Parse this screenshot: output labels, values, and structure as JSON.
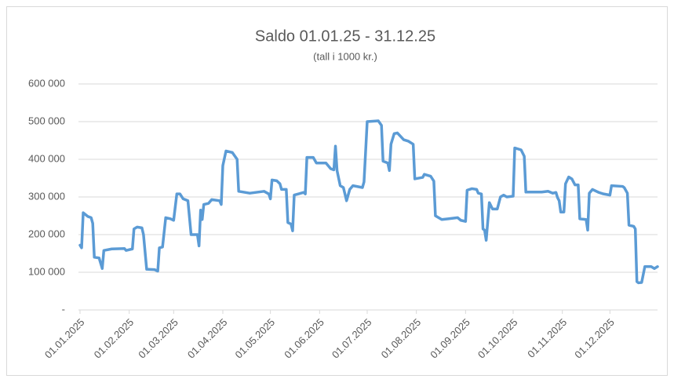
{
  "chart_data": {
    "type": "line",
    "title": "Saldo 01.01.25 - 31.12.25",
    "subtitle": "(tall i 1000 kr.)",
    "x": [
      "2025-01-01",
      "2025-01-02",
      "2025-01-03",
      "2025-01-06",
      "2025-01-08",
      "2025-01-09",
      "2025-01-10",
      "2025-01-13",
      "2025-01-15",
      "2025-01-16",
      "2025-01-21",
      "2025-01-29",
      "2025-01-30",
      "2025-02-03",
      "2025-02-04",
      "2025-02-06",
      "2025-02-09",
      "2025-02-10",
      "2025-02-12",
      "2025-02-17",
      "2025-02-19",
      "2025-02-20",
      "2025-02-22",
      "2025-02-24",
      "2025-02-27",
      "2025-03-01",
      "2025-03-03",
      "2025-03-05",
      "2025-03-07",
      "2025-03-10",
      "2025-03-12",
      "2025-03-16",
      "2025-03-17",
      "2025-03-18",
      "2025-03-19",
      "2025-03-20",
      "2025-03-23",
      "2025-03-25",
      "2025-03-30",
      "2025-03-31",
      "2025-04-01",
      "2025-04-03",
      "2025-04-07",
      "2025-04-10",
      "2025-04-11",
      "2025-04-18",
      "2025-04-27",
      "2025-04-30",
      "2025-05-01",
      "2025-05-02",
      "2025-05-05",
      "2025-05-07",
      "2025-05-08",
      "2025-05-11",
      "2025-05-12",
      "2025-05-14",
      "2025-05-15",
      "2025-05-16",
      "2025-05-22",
      "2025-05-23",
      "2025-05-24",
      "2025-05-28",
      "2025-05-30",
      "2025-06-05",
      "2025-06-08",
      "2025-06-10",
      "2025-06-11",
      "2025-06-12",
      "2025-06-14",
      "2025-06-16",
      "2025-06-18",
      "2025-06-20",
      "2025-06-22",
      "2025-06-28",
      "2025-06-29",
      "2025-07-01",
      "2025-07-08",
      "2025-07-10",
      "2025-07-11",
      "2025-07-14",
      "2025-07-15",
      "2025-07-16",
      "2025-07-18",
      "2025-07-20",
      "2025-07-24",
      "2025-07-27",
      "2025-07-30",
      "2025-07-31",
      "2025-08-05",
      "2025-08-06",
      "2025-08-10",
      "2025-08-12",
      "2025-08-13",
      "2025-08-17",
      "2025-08-21",
      "2025-08-27",
      "2025-08-29",
      "2025-09-01",
      "2025-09-02",
      "2025-09-05",
      "2025-09-08",
      "2025-09-09",
      "2025-09-11",
      "2025-09-12",
      "2025-09-13",
      "2025-09-14",
      "2025-09-16",
      "2025-09-18",
      "2025-09-21",
      "2025-09-23",
      "2025-09-25",
      "2025-09-27",
      "2025-10-01",
      "2025-10-02",
      "2025-10-06",
      "2025-10-08",
      "2025-10-09",
      "2025-10-19",
      "2025-10-23",
      "2025-10-26",
      "2025-10-28",
      "2025-10-29",
      "2025-10-30",
      "2025-10-31",
      "2025-11-02",
      "2025-11-03",
      "2025-11-05",
      "2025-11-07",
      "2025-11-09",
      "2025-11-11",
      "2025-11-12",
      "2025-11-16",
      "2025-11-17",
      "2025-11-18",
      "2025-11-20",
      "2025-11-24",
      "2025-11-27",
      "2025-12-01",
      "2025-12-02",
      "2025-12-09",
      "2025-12-10",
      "2025-12-12",
      "2025-12-13",
      "2025-12-16",
      "2025-12-17",
      "2025-12-18",
      "2025-12-19",
      "2025-12-21",
      "2025-12-23",
      "2025-12-27",
      "2025-12-29",
      "2025-12-31"
    ],
    "series": [
      {
        "name": "Saldo",
        "color": "#5b9bd5",
        "values": [
          172000,
          165000,
          258000,
          248000,
          245000,
          230000,
          140000,
          138000,
          110000,
          158000,
          162000,
          163000,
          158000,
          162000,
          215000,
          220000,
          218000,
          200000,
          108000,
          107000,
          103000,
          165000,
          167000,
          245000,
          242000,
          238000,
          308000,
          308000,
          295000,
          290000,
          200000,
          200000,
          170000,
          265000,
          240000,
          280000,
          283000,
          293000,
          290000,
          280000,
          383000,
          422000,
          418000,
          400000,
          315000,
          310000,
          315000,
          308000,
          295000,
          345000,
          343000,
          335000,
          320000,
          320000,
          232000,
          228000,
          210000,
          305000,
          312000,
          308000,
          405000,
          405000,
          390000,
          390000,
          375000,
          372000,
          435000,
          370000,
          330000,
          325000,
          290000,
          320000,
          330000,
          325000,
          340000,
          500000,
          502000,
          490000,
          395000,
          390000,
          370000,
          440000,
          468000,
          470000,
          452000,
          448000,
          440000,
          348000,
          352000,
          360000,
          355000,
          342000,
          250000,
          240000,
          242000,
          245000,
          238000,
          235000,
          318000,
          322000,
          320000,
          310000,
          308000,
          215000,
          212000,
          185000,
          285000,
          268000,
          268000,
          300000,
          305000,
          300000,
          302000,
          430000,
          425000,
          408000,
          313000,
          313000,
          315000,
          310000,
          312000,
          298000,
          290000,
          260000,
          260000,
          335000,
          353000,
          348000,
          332000,
          332000,
          242000,
          240000,
          212000,
          310000,
          320000,
          312000,
          308000,
          305000,
          330000,
          328000,
          325000,
          310000,
          225000,
          222000,
          215000,
          75000,
          72000,
          73000,
          115000,
          115000,
          110000,
          115000
        ]
      }
    ],
    "xlim": [
      "2025-01-01",
      "2025-12-31"
    ],
    "xticks": [
      {
        "value": "2025-01-01",
        "label": "01.01.2025"
      },
      {
        "value": "2025-02-01",
        "label": "01.02.2025"
      },
      {
        "value": "2025-03-01",
        "label": "01.03.2025"
      },
      {
        "value": "2025-04-01",
        "label": "01.04.2025"
      },
      {
        "value": "2025-05-01",
        "label": "01.05.2025"
      },
      {
        "value": "2025-06-01",
        "label": "01.06.2025"
      },
      {
        "value": "2025-07-01",
        "label": "01.07.2025"
      },
      {
        "value": "2025-08-01",
        "label": "01.08.2025"
      },
      {
        "value": "2025-09-01",
        "label": "01.09.2025"
      },
      {
        "value": "2025-10-01",
        "label": "01.10.2025"
      },
      {
        "value": "2025-11-01",
        "label": "01.11.2025"
      },
      {
        "value": "2025-12-01",
        "label": "01.12.2025"
      }
    ],
    "ylim": [
      0,
      600000
    ],
    "yticks": [
      {
        "value": 0,
        "label": "-"
      },
      {
        "value": 100000,
        "label": "100 000"
      },
      {
        "value": 200000,
        "label": "200 000"
      },
      {
        "value": 300000,
        "label": "300 000"
      },
      {
        "value": 400000,
        "label": "400 000"
      },
      {
        "value": 500000,
        "label": "500 000"
      },
      {
        "value": 600000,
        "label": "600 000"
      }
    ],
    "grid": true
  }
}
